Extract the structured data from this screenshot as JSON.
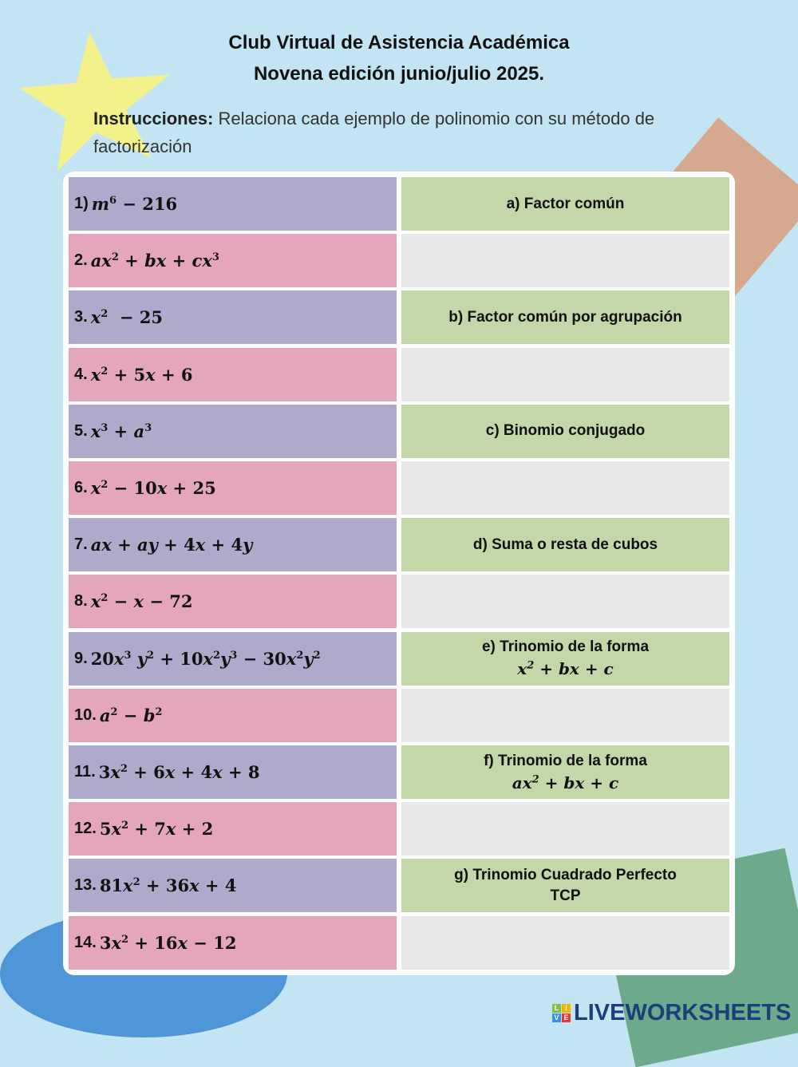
{
  "header": {
    "title_line1": "Club Virtual de Asistencia Académica",
    "title_line2": "Novena edición junio/julio 2025.",
    "instructions_label": "Instrucciones:",
    "instructions_text": " Relaciona cada ejemplo de polinomio con su método de factorización"
  },
  "colors": {
    "background": "#c3e4f3",
    "left_odd": "#aeaacb",
    "left_even": "#e3a6bd",
    "right_answer": "#c3d7a9",
    "right_blank": "#e8e8e8"
  },
  "polynomials": [
    {
      "num": "1)",
      "expr": [
        [
          "m",
          1
        ],
        [
          "6",
          2
        ],
        [
          " − 216",
          0
        ]
      ]
    },
    {
      "num": "2.",
      "expr": [
        [
          "ax",
          1
        ],
        [
          "2",
          2
        ],
        [
          " + ",
          0
        ],
        [
          "bx",
          1
        ],
        [
          " + ",
          0
        ],
        [
          "cx",
          1
        ],
        [
          "3",
          2
        ]
      ]
    },
    {
      "num": "3.",
      "expr": [
        [
          "x",
          1
        ],
        [
          "2",
          2
        ],
        [
          "  − 25",
          0
        ]
      ]
    },
    {
      "num": "4.",
      "expr": [
        [
          "x",
          1
        ],
        [
          "2",
          2
        ],
        [
          " + 5",
          0
        ],
        [
          "x",
          1
        ],
        [
          " + 6",
          0
        ]
      ]
    },
    {
      "num": "5.",
      "expr": [
        [
          "x",
          1
        ],
        [
          "3",
          2
        ],
        [
          " + ",
          0
        ],
        [
          "a",
          1
        ],
        [
          "3",
          2
        ]
      ]
    },
    {
      "num": "6.",
      "expr": [
        [
          "x",
          1
        ],
        [
          "2",
          2
        ],
        [
          " − 10",
          0
        ],
        [
          "x",
          1
        ],
        [
          " + 25",
          0
        ]
      ]
    },
    {
      "num": "7.",
      "expr": [
        [
          "ax",
          1
        ],
        [
          " + ",
          0
        ],
        [
          "ay",
          1
        ],
        [
          " + 4",
          0
        ],
        [
          "x",
          1
        ],
        [
          " + 4",
          0
        ],
        [
          "y",
          1
        ]
      ]
    },
    {
      "num": "8.",
      "expr": [
        [
          "x",
          1
        ],
        [
          "2",
          2
        ],
        [
          " − ",
          0
        ],
        [
          "x",
          1
        ],
        [
          " − 72",
          0
        ]
      ]
    },
    {
      "num": "9.",
      "expr": [
        [
          "20",
          0
        ],
        [
          "x",
          1
        ],
        [
          "3",
          2
        ],
        [
          " ",
          0
        ],
        [
          "y",
          1
        ],
        [
          "2",
          2
        ],
        [
          " + 10",
          0
        ],
        [
          "x",
          1
        ],
        [
          "2",
          2
        ],
        [
          "y",
          1
        ],
        [
          "3",
          2
        ],
        [
          " − 30",
          0
        ],
        [
          "x",
          1
        ],
        [
          "2",
          2
        ],
        [
          "y",
          1
        ],
        [
          "2",
          2
        ]
      ]
    },
    {
      "num": "10.",
      "expr": [
        [
          "a",
          1
        ],
        [
          "2",
          2
        ],
        [
          " − ",
          0
        ],
        [
          "b",
          1
        ],
        [
          "2",
          2
        ]
      ]
    },
    {
      "num": "11.",
      "expr": [
        [
          "3",
          0
        ],
        [
          "x",
          1
        ],
        [
          "2",
          2
        ],
        [
          " + 6",
          0
        ],
        [
          "x",
          1
        ],
        [
          " + 4",
          0
        ],
        [
          "x",
          1
        ],
        [
          " + 8",
          0
        ]
      ]
    },
    {
      "num": "12.",
      "expr": [
        [
          "5",
          0
        ],
        [
          "x",
          1
        ],
        [
          "2",
          2
        ],
        [
          " + 7",
          0
        ],
        [
          "x",
          1
        ],
        [
          " + 2",
          0
        ]
      ]
    },
    {
      "num": "13.",
      "expr": [
        [
          "81",
          0
        ],
        [
          "x",
          1
        ],
        [
          "2",
          2
        ],
        [
          " + 36",
          0
        ],
        [
          "x",
          1
        ],
        [
          " + 4",
          0
        ]
      ]
    },
    {
      "num": "14.",
      "expr": [
        [
          "3",
          0
        ],
        [
          "x",
          1
        ],
        [
          "2",
          2
        ],
        [
          " + 16",
          0
        ],
        [
          "x",
          1
        ],
        [
          " − 12",
          0
        ]
      ]
    }
  ],
  "methods": [
    {
      "label": "a) Factor común"
    },
    {
      "label": "b) Factor común por agrupación"
    },
    {
      "label": "c) Binomio conjugado"
    },
    {
      "label": "d) Suma o resta de cubos"
    },
    {
      "label": "e) Trinomio de la forma",
      "expr": [
        [
          "x",
          1
        ],
        [
          "2",
          2
        ],
        [
          " + ",
          0
        ],
        [
          "bx",
          1
        ],
        [
          " + ",
          0
        ],
        [
          "c",
          1
        ]
      ]
    },
    {
      "label": "f) Trinomio de la forma",
      "expr": [
        [
          "ax",
          1
        ],
        [
          "2",
          2
        ],
        [
          " + ",
          0
        ],
        [
          "bx",
          1
        ],
        [
          " + ",
          0
        ],
        [
          "c",
          1
        ]
      ]
    },
    {
      "label": "g) Trinomio Cuadrado Perfecto",
      "label2": "TCP"
    }
  ],
  "logo": {
    "text": "LIVEWORKSHEETS",
    "badge": [
      "L",
      "I",
      "V",
      "E"
    ]
  }
}
